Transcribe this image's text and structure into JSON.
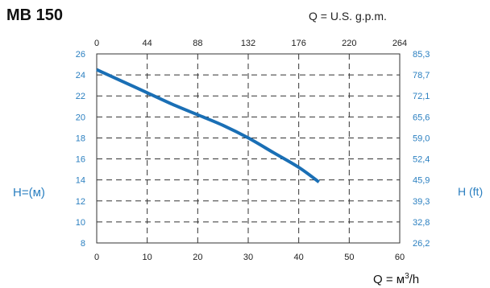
{
  "header": {
    "title": "MB 150",
    "top_axis_label": "Q = U.S. g.p.m."
  },
  "axes": {
    "left_label": "H=(м)",
    "right_label": "H (ft)",
    "bottom_label_prefix": "Q = м",
    "bottom_label_sup": "3",
    "bottom_label_suffix": "/h"
  },
  "colors": {
    "curve": "#1a6fb5",
    "tick_blue": "#2a7fc0",
    "tick_dark": "#222222",
    "grid": "#333333"
  },
  "chart_data": {
    "type": "line",
    "title": "MB 150",
    "xlabel": "Q = м3/h",
    "ylabel": "H=(м)",
    "secondary_xlabel": "Q = U.S. g.p.m.",
    "secondary_ylabel": "H (ft)",
    "xlim": [
      0,
      60
    ],
    "ylim": [
      8,
      26
    ],
    "x_ticks": [
      "0",
      "10",
      "20",
      "30",
      "40",
      "50",
      "60"
    ],
    "y_ticks": [
      "8",
      "10",
      "12",
      "14",
      "16",
      "18",
      "20",
      "22",
      "24",
      "26"
    ],
    "top_ticks": [
      "0",
      "44",
      "88",
      "132",
      "176",
      "220",
      "264"
    ],
    "right_ticks": [
      "26,2",
      "32,8",
      "39,3",
      "45,9",
      "52,4",
      "59,0",
      "65,6",
      "72,1",
      "78,7",
      "85,3"
    ],
    "grid": true,
    "series": [
      {
        "x": [
          0,
          5,
          10,
          15,
          20,
          25,
          30,
          35,
          40,
          44
        ],
        "y": [
          24.5,
          23.4,
          22.3,
          21.2,
          20.2,
          19.2,
          18.0,
          16.6,
          15.2,
          13.8
        ]
      }
    ]
  }
}
